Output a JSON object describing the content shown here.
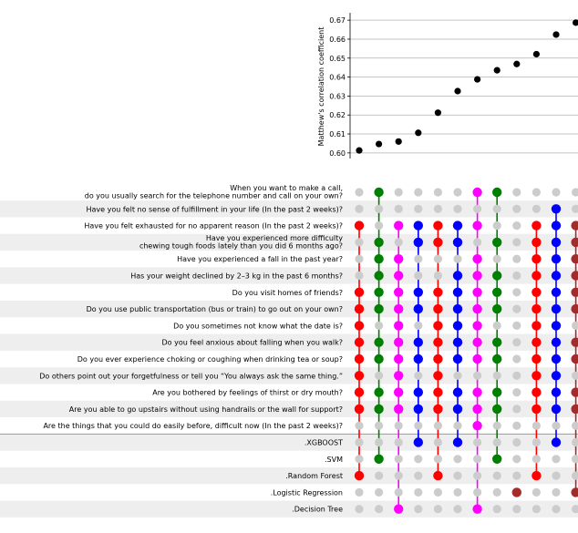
{
  "chart_data": {
    "type": "scatter",
    "subtype": "upset-style matrix with scatter of scores",
    "ylabel": "Matthew's correlation coefficient",
    "ylim": [
      0.598,
      0.672
    ],
    "yticks": [
      "0.60",
      "0.61",
      "0.62",
      "0.63",
      "0.64",
      "0.65",
      "0.66",
      "0.67"
    ],
    "scores": [
      0.6013,
      0.6047,
      0.606,
      0.6106,
      0.6212,
      0.6326,
      0.6388,
      0.6436,
      0.6469,
      0.6521,
      0.6624,
      0.6687
    ],
    "question_rows": [
      {
        "label": "When you want to make a call,\ndo you usually search for the telephone number and call on your own?",
        "on": [
          1,
          6,
          7
        ]
      },
      {
        "label": "Have you felt no sense of fulfillment in your life (In the past 2 weeks)?",
        "on": [
          10
        ]
      },
      {
        "label": "Have you felt exhausted for no apparent reason (In the past 2 weeks)?",
        "on": [
          0,
          2,
          3,
          4,
          5,
          6,
          9,
          10,
          11
        ]
      },
      {
        "label": "Have you experienced more difficulty\nchewing tough foods lately than you did 6 months ago?",
        "on": [
          1,
          3,
          4,
          5,
          7,
          9,
          10,
          11
        ]
      },
      {
        "label": "Have you experienced a fall in the past year?",
        "on": [
          1,
          2,
          6,
          9,
          10,
          11
        ]
      },
      {
        "label": "Has your weight declined by 2–3 kg in the past 6 months?",
        "on": [
          1,
          2,
          5,
          6,
          7,
          9,
          10,
          11
        ]
      },
      {
        "label": "Do you visit homes of friends?",
        "on": [
          0,
          1,
          2,
          3,
          4,
          5,
          6,
          7,
          9,
          10,
          11
        ]
      },
      {
        "label": "Do you use public transportation (bus or train) to go out on your own?",
        "on": [
          0,
          1,
          2,
          3,
          4,
          5,
          6,
          7,
          9,
          10,
          11
        ]
      },
      {
        "label": "Do you sometimes not know what the date is?",
        "on": [
          0,
          2,
          4,
          5,
          6,
          9,
          10
        ]
      },
      {
        "label": "Do you feel anxious about falling when you walk?",
        "on": [
          0,
          1,
          2,
          3,
          4,
          5,
          6,
          7,
          9,
          10,
          11
        ]
      },
      {
        "label": "Do you ever experience choking or coughing when drinking tea or soup?",
        "on": [
          0,
          1,
          2,
          3,
          4,
          5,
          6,
          7,
          9,
          10,
          11
        ]
      },
      {
        "label": "Do others point out your forgetfulness or tell you “You always ask the same thing.”",
        "on": [
          0,
          2,
          4,
          9,
          10
        ]
      },
      {
        "label": "Are you bothered by feelings of thirst or dry mouth?",
        "on": [
          0,
          1,
          2,
          3,
          4,
          5,
          6,
          7,
          9,
          10,
          11
        ]
      },
      {
        "label": "Are you able to go upstairs without using handrails or the wall for support?",
        "on": [
          0,
          1,
          2,
          3,
          4,
          5,
          6,
          7,
          9,
          10,
          11
        ]
      },
      {
        "label": "Are the things that you could do easily before, difficult now (In the past 2 weeks)?",
        "on": [
          6
        ]
      }
    ],
    "model_rows": [
      {
        "label": ".XGBOOST",
        "color": "#0000ff",
        "on": [
          3,
          5,
          10
        ]
      },
      {
        "label": ".SVM",
        "color": "#008000",
        "on": [
          1,
          7
        ]
      },
      {
        "label": ".Random Forest",
        "color": "#cc0000",
        "on": [
          0,
          4,
          9
        ]
      },
      {
        "label": ".Logistic Regression",
        "color": "#8b0000",
        "on": [
          8,
          11
        ]
      },
      {
        "label": ".Decision Tree",
        "color": "#000000",
        "on": [
          2,
          6
        ]
      }
    ],
    "column_colors": [
      "#ff0000",
      "#008000",
      "#ff00ff",
      "#0000ff",
      "#ff0000",
      "#0000ff",
      "#ff00ff",
      "#008000",
      "#a52a2a",
      "#ff0000",
      "#0000ff",
      "#a52a2a"
    ],
    "inactive_color": "#cccccc",
    "grid": true
  }
}
